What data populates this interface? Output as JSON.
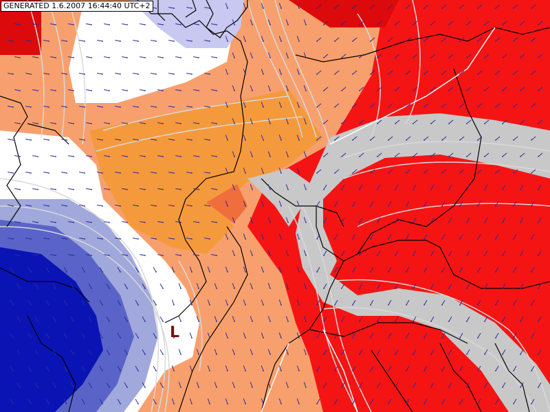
{
  "map": {
    "generated_label": "GENERATED 1.6.2007 16:44:40 UTC+2",
    "pressure_center_label": "L",
    "colors": {
      "deep_blue": "#0a14b4",
      "mid_blue": "#5a64c8",
      "light_blue": "#a0a8dc",
      "pale_lavender": "#c8c8f0",
      "white": "#ffffff",
      "light_orange": "#f7a06e",
      "orange": "#f59a3c",
      "dark_orange": "#f06e3c",
      "red": "#f51414",
      "dark_red": "#dc0a0a",
      "gray_band": "#c8c8c8",
      "contour_line": "#d9d9d9",
      "border": "#000000",
      "wind_arrow": "#2a2a9a",
      "low_marker": "#7a1010"
    },
    "icons": [
      "wind-arrow-icon",
      "low-pressure-icon",
      "country-border-line",
      "contour-line"
    ]
  }
}
